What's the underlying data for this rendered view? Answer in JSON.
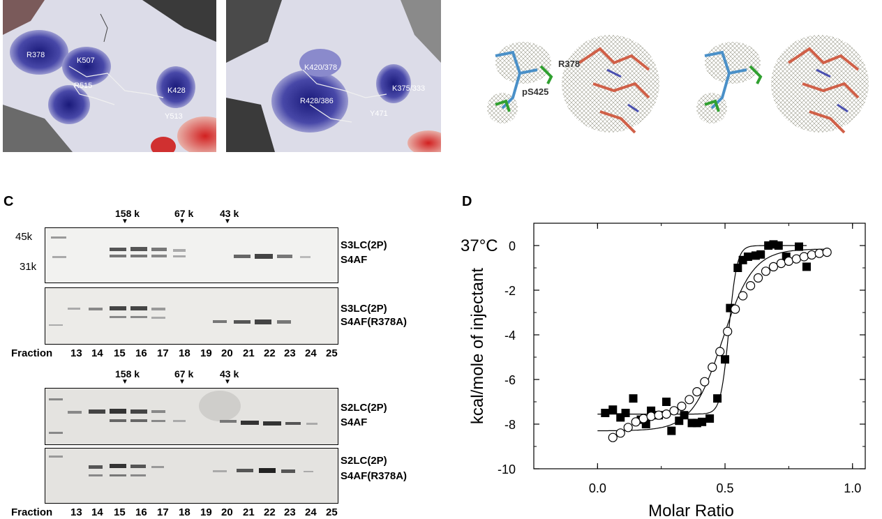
{
  "panel_a": {
    "left_image_labels": [
      "R378",
      "K507",
      "R515",
      "K428",
      "Y513"
    ],
    "middle_image_labels": [
      "K420/378",
      "R428/386",
      "K375/333",
      "Y471"
    ]
  },
  "panel_b": {
    "labels": [
      "R378",
      "pS425"
    ]
  },
  "panel_c": {
    "letter": "C",
    "size_markers": [
      "158 k",
      "67 k",
      "43 k"
    ],
    "mw_labels": [
      "45k",
      "31k"
    ],
    "gels": [
      {
        "top_label": "S3LC(2P)",
        "bottom_label": "S4AF"
      },
      {
        "top_label": "S3LC(2P)",
        "bottom_label": "S4AF(R378A)"
      },
      {
        "top_label": "S2LC(2P)",
        "bottom_label": "S4AF"
      },
      {
        "top_label": "S2LC(2P)",
        "bottom_label": "S4AF(R378A)"
      }
    ],
    "fraction_label": "Fraction",
    "fractions": [
      "13",
      "14",
      "15",
      "16",
      "17",
      "18",
      "19",
      "20",
      "21",
      "22",
      "23",
      "24",
      "25"
    ]
  },
  "chart_data": {
    "type": "scatter",
    "panel_letter": "D",
    "annotation": "37°C",
    "xlabel": "Molar Ratio",
    "ylabel": "kcal/mole of injectant",
    "xlim": [
      -0.25,
      1.05
    ],
    "ylim": [
      -10,
      1
    ],
    "x_ticks": [
      "0.0",
      "0.5",
      "1.0"
    ],
    "y_ticks": [
      "0",
      "-2",
      "-4",
      "-6",
      "-8",
      "-10"
    ],
    "series": [
      {
        "marker": "filled-square",
        "x": [
          0.03,
          0.06,
          0.09,
          0.11,
          0.14,
          0.17,
          0.19,
          0.21,
          0.24,
          0.27,
          0.29,
          0.32,
          0.34,
          0.37,
          0.39,
          0.41,
          0.44,
          0.47,
          0.5,
          0.52,
          0.55,
          0.57,
          0.59,
          0.62,
          0.64,
          0.67,
          0.69,
          0.71,
          0.74,
          0.79,
          0.82
        ],
        "y": [
          -7.5,
          -7.35,
          -7.7,
          -7.5,
          -6.85,
          -7.8,
          -8.0,
          -7.4,
          -7.6,
          -7.0,
          -8.3,
          -7.85,
          -7.6,
          -7.95,
          -7.95,
          -7.9,
          -7.75,
          -6.85,
          -5.1,
          -2.8,
          -1.0,
          -0.65,
          -0.5,
          -0.45,
          -0.4,
          0.0,
          0.05,
          0.0,
          -0.5,
          -0.05,
          -0.95
        ]
      },
      {
        "marker": "open-circle",
        "x": [
          0.06,
          0.09,
          0.12,
          0.15,
          0.18,
          0.21,
          0.24,
          0.27,
          0.3,
          0.33,
          0.36,
          0.39,
          0.42,
          0.45,
          0.48,
          0.51,
          0.54,
          0.57,
          0.6,
          0.63,
          0.66,
          0.69,
          0.72,
          0.75,
          0.78,
          0.81,
          0.84,
          0.87,
          0.9
        ],
        "y": [
          -8.6,
          -8.4,
          -8.15,
          -7.9,
          -7.75,
          -7.65,
          -7.6,
          -7.55,
          -7.4,
          -7.2,
          -6.9,
          -6.55,
          -6.1,
          -5.45,
          -4.75,
          -3.85,
          -2.85,
          -2.25,
          -1.8,
          -1.45,
          -1.15,
          -0.95,
          -0.8,
          -0.7,
          -0.6,
          -0.5,
          -0.42,
          -0.35,
          -0.3
        ]
      }
    ]
  }
}
